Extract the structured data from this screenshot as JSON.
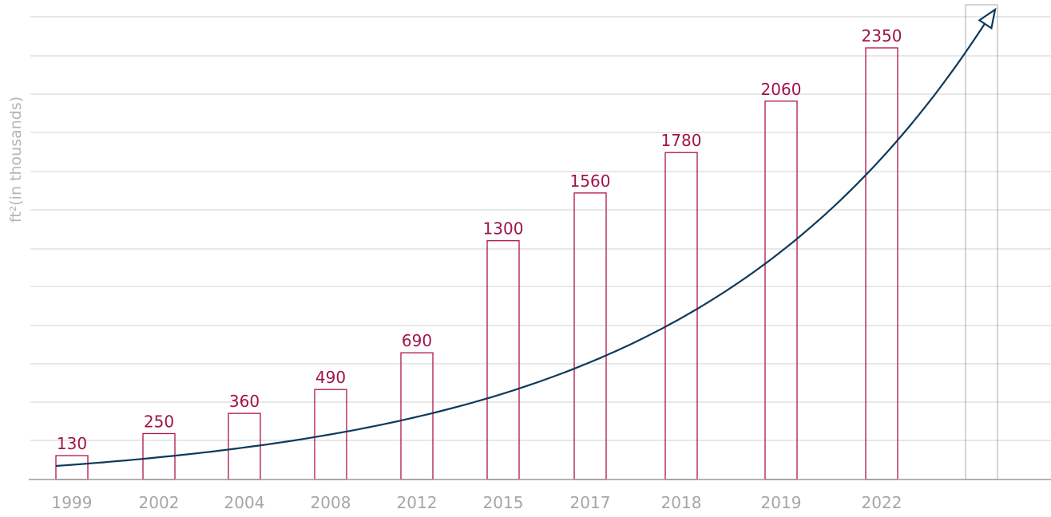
{
  "chart_data": {
    "type": "bar",
    "title": "",
    "xlabel": "",
    "ylabel": "ft²(in thousands)",
    "categories": [
      "1999",
      "2002",
      "2004",
      "2008",
      "2012",
      "2015",
      "2017",
      "2018",
      "2019",
      "2022"
    ],
    "values": [
      130,
      250,
      360,
      490,
      690,
      1300,
      1560,
      1780,
      2060,
      2350
    ],
    "data_labels": [
      "130",
      "250",
      "360",
      "490",
      "690",
      "1300",
      "1560",
      "1780",
      "2060",
      "2350"
    ],
    "ylim": [
      0,
      2600
    ],
    "grid": true,
    "legend": "none",
    "extra_empty_bar": true,
    "trend_arrow": "exponential growth curve ending in an arrowhead",
    "colors": {
      "bar_outline": "#b0124c",
      "label": "#a0144a",
      "trend": "#0d3a5c",
      "grid": "#d0d0d0",
      "tick": "#a6a6a6",
      "empty_bar": "#b7b7b7"
    }
  }
}
